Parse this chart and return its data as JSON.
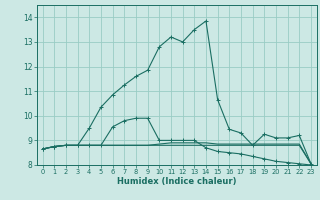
{
  "xlabel": "Humidex (Indice chaleur)",
  "background_color": "#cce8e4",
  "line_color": "#1a6e62",
  "grid_color": "#99ccc4",
  "xlim": [
    -0.5,
    23.5
  ],
  "ylim": [
    8.0,
    14.5
  ],
  "yticks": [
    8,
    9,
    10,
    11,
    12,
    13,
    14
  ],
  "xticks": [
    0,
    1,
    2,
    3,
    4,
    5,
    6,
    7,
    8,
    9,
    10,
    11,
    12,
    13,
    14,
    15,
    16,
    17,
    18,
    19,
    20,
    21,
    22,
    23
  ],
  "series_main_x": [
    0,
    1,
    2,
    3,
    4,
    5,
    6,
    7,
    8,
    9,
    10,
    11,
    12,
    13,
    14,
    15,
    16,
    17,
    18,
    19,
    20,
    21,
    22,
    23
  ],
  "series_main_y": [
    8.65,
    8.75,
    8.8,
    8.8,
    9.5,
    10.35,
    10.85,
    11.25,
    11.6,
    11.85,
    12.8,
    13.2,
    13.0,
    13.5,
    13.85,
    10.65,
    9.45,
    9.3,
    8.8,
    9.25,
    9.1,
    9.1,
    9.2,
    8.05
  ],
  "series_mid_x": [
    0,
    1,
    2,
    3,
    4,
    5,
    6,
    7,
    8,
    9,
    10,
    11,
    12,
    13,
    14,
    15,
    16,
    17,
    18,
    19,
    20,
    21,
    22,
    23
  ],
  "series_mid_y": [
    8.65,
    8.75,
    8.8,
    8.8,
    8.8,
    8.8,
    9.55,
    9.8,
    9.9,
    9.9,
    9.0,
    9.0,
    9.0,
    9.0,
    8.7,
    8.55,
    8.5,
    8.45,
    8.35,
    8.25,
    8.15,
    8.1,
    8.05,
    8.0
  ],
  "series_flat_x": [
    0,
    1,
    2,
    3,
    4,
    5,
    6,
    7,
    8,
    9,
    10,
    11,
    12,
    13,
    14,
    15,
    16,
    17,
    18,
    19,
    20,
    21,
    22,
    23
  ],
  "series_flat_y": [
    8.65,
    8.75,
    8.8,
    8.8,
    8.8,
    8.8,
    8.8,
    8.8,
    8.8,
    8.8,
    8.85,
    8.9,
    8.9,
    8.9,
    8.9,
    8.85,
    8.85,
    8.85,
    8.85,
    8.85,
    8.85,
    8.85,
    8.85,
    8.05
  ],
  "series_dflat_x": [
    0,
    1,
    2,
    3,
    4,
    5,
    6,
    7,
    8,
    9,
    10,
    11,
    12,
    13,
    14,
    15,
    16,
    17,
    18,
    19,
    20,
    21,
    22,
    23
  ],
  "series_dflat_y": [
    8.65,
    8.75,
    8.8,
    8.8,
    8.8,
    8.8,
    8.8,
    8.8,
    8.8,
    8.8,
    8.8,
    8.8,
    8.8,
    8.8,
    8.8,
    8.8,
    8.8,
    8.8,
    8.8,
    8.8,
    8.8,
    8.8,
    8.8,
    8.05
  ]
}
